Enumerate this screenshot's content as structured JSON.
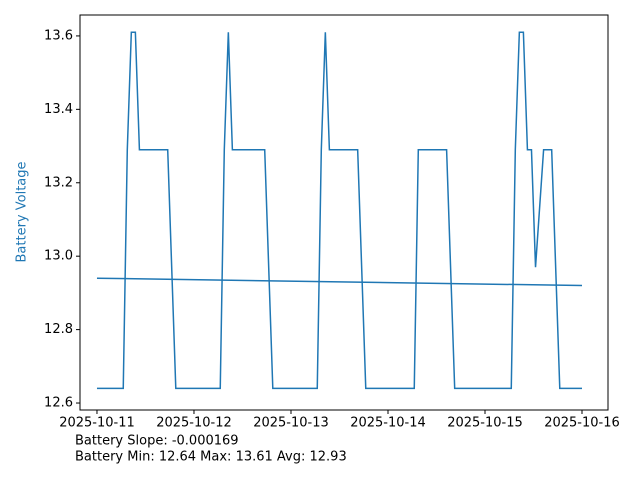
{
  "chart_data": {
    "type": "line",
    "y_label": "Battery Voltage",
    "y_label_color": "#1f77b4",
    "annotations": [
      "Battery Slope: -0.000169",
      "Battery Min: 12.64 Max: 13.61 Avg: 12.93"
    ],
    "series": [
      {
        "color": "#1f77b4",
        "x": [
          "2025-10-11T00:00",
          "2025-10-11T06:30",
          "2025-10-11T07:30",
          "2025-10-11T08:30",
          "2025-10-11T09:30",
          "2025-10-11T10:30",
          "2025-10-11T17:30",
          "2025-10-11T19:30",
          "2025-10-12T06:30",
          "2025-10-12T07:30",
          "2025-10-12T08:30",
          "2025-10-12T09:30",
          "2025-10-12T17:30",
          "2025-10-12T19:30",
          "2025-10-13T06:30",
          "2025-10-13T07:30",
          "2025-10-13T08:30",
          "2025-10-13T09:30",
          "2025-10-13T16:30",
          "2025-10-13T18:30",
          "2025-10-14T06:30",
          "2025-10-14T07:30",
          "2025-10-14T14:30",
          "2025-10-14T16:30",
          "2025-10-15T06:30",
          "2025-10-15T07:30",
          "2025-10-15T08:30",
          "2025-10-15T09:30",
          "2025-10-15T10:30",
          "2025-10-15T11:30",
          "2025-10-15T12:30",
          "2025-10-15T14:30",
          "2025-10-15T16:30",
          "2025-10-15T18:30",
          "2025-10-16T00:00"
        ],
        "values": [
          12.64,
          12.64,
          13.29,
          13.61,
          13.61,
          13.29,
          13.29,
          12.64,
          12.64,
          13.29,
          13.61,
          13.29,
          13.29,
          12.64,
          12.64,
          13.29,
          13.61,
          13.29,
          13.29,
          12.64,
          12.64,
          13.29,
          13.29,
          12.64,
          12.64,
          13.29,
          13.61,
          13.61,
          13.29,
          13.29,
          12.97,
          13.29,
          13.29,
          12.64,
          12.64
        ]
      },
      {
        "color": "#1f77b4",
        "x": [
          "2025-10-11T00:00",
          "2025-10-16T00:00"
        ],
        "values": [
          12.94,
          12.92
        ]
      }
    ],
    "xlim": [
      "2025-10-10T19:48",
      "2025-10-16T06:26"
    ],
    "xticks": [
      "2025-10-11",
      "2025-10-12",
      "2025-10-13",
      "2025-10-14",
      "2025-10-15",
      "2025-10-16"
    ],
    "ylim": [
      12.581,
      13.657
    ],
    "yticks": [
      12.6,
      12.8,
      {
        "value": 13,
        "label": "13.0"
      },
      13.2,
      13.4,
      13.6
    ],
    "grid": false
  }
}
